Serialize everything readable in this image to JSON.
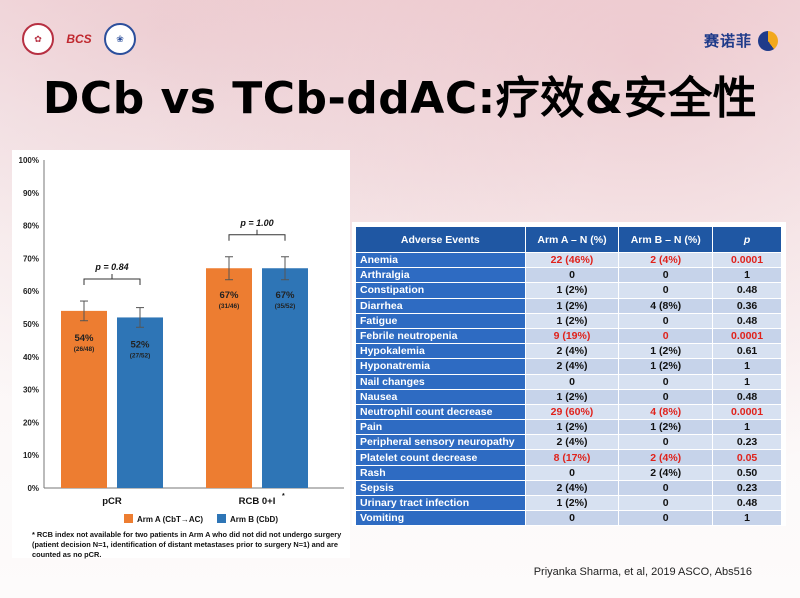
{
  "header": {
    "logo_left_1": "icon",
    "logo_bcs": "BCS",
    "logo_left_3": "icon",
    "brand_name": "赛诺菲"
  },
  "title": "DCb vs TCb-ddAC:疗效&安全性",
  "chart_data": {
    "type": "bar",
    "categories": [
      "pCR",
      "RCB 0+I*"
    ],
    "series": [
      {
        "name": "Arm A (CbT→AC)",
        "color": "#ed7d31",
        "values": [
          54,
          67
        ],
        "labels": [
          "54%",
          "67%"
        ],
        "sublabels": [
          "(26/48)",
          "(31/46)"
        ],
        "err": [
          3,
          3.5
        ]
      },
      {
        "name": "Arm B (CbD)",
        "color": "#2e75b6",
        "values": [
          52,
          67
        ],
        "labels": [
          "52%",
          "67%"
        ],
        "sublabels": [
          "(27/52)",
          "(35/52)"
        ],
        "err": [
          3,
          3.5
        ]
      }
    ],
    "ylim": [
      0,
      100
    ],
    "yticks": [
      "0%",
      "10%",
      "20%",
      "30%",
      "40%",
      "50%",
      "60%",
      "70%",
      "80%",
      "90%",
      "100%"
    ],
    "xlabels": [
      "pCR",
      "RCB 0+I"
    ],
    "xlabel_sup": "*",
    "pvalues": [
      "p = 0.84",
      "p = 1.00"
    ],
    "legend_placement": "bottom",
    "footnote": "* RCB index not available for two patients in Arm A who did not did not undergo surgery (patient decision N=1, identification of distant metastases prior to surgery N=1) and are counted as no pCR."
  },
  "table": {
    "headers": [
      "Adverse Events",
      "Arm A – N (%)",
      "Arm B – N (%)",
      "p"
    ],
    "rows": [
      {
        "name": "Anemia",
        "a": "22 (46%)",
        "b": "2 (4%)",
        "p": "0.0001",
        "red": true
      },
      {
        "name": "Arthralgia",
        "a": "0",
        "b": "0",
        "p": "1",
        "red": false
      },
      {
        "name": "Constipation",
        "a": "1 (2%)",
        "b": "0",
        "p": "0.48",
        "red": false
      },
      {
        "name": "Diarrhea",
        "a": "1 (2%)",
        "b": "4 (8%)",
        "p": "0.36",
        "red": false
      },
      {
        "name": "Fatigue",
        "a": "1 (2%)",
        "b": "0",
        "p": "0.48",
        "red": false
      },
      {
        "name": "Febrile neutropenia",
        "a": "9 (19%)",
        "b": "0",
        "p": "0.0001",
        "red": true
      },
      {
        "name": "Hypokalemia",
        "a": "2 (4%)",
        "b": "1 (2%)",
        "p": "0.61",
        "red": false
      },
      {
        "name": "Hyponatremia",
        "a": "2 (4%)",
        "b": "1 (2%)",
        "p": "1",
        "red": false
      },
      {
        "name": "Nail changes",
        "a": "0",
        "b": "0",
        "p": "1",
        "red": false
      },
      {
        "name": "Nausea",
        "a": "1 (2%)",
        "b": "0",
        "p": "0.48",
        "red": false
      },
      {
        "name": "Neutrophil count decrease",
        "a": "29 (60%)",
        "b": "4 (8%)",
        "p": "0.0001",
        "red": true
      },
      {
        "name": "Pain",
        "a": "1 (2%)",
        "b": "1 (2%)",
        "p": "1",
        "red": false
      },
      {
        "name": "Peripheral sensory neuropathy",
        "a": "2 (4%)",
        "b": "0",
        "p": "0.23",
        "red": false
      },
      {
        "name": "Platelet count decrease",
        "a": "8 (17%)",
        "b": "2 (4%)",
        "p": "0.05",
        "red": true
      },
      {
        "name": "Rash",
        "a": "0",
        "b": "2 (4%)",
        "p": "0.50",
        "red": false
      },
      {
        "name": "Sepsis",
        "a": "2 (4%)",
        "b": "0",
        "p": "0.23",
        "red": false
      },
      {
        "name": "Urinary tract infection",
        "a": "1 (2%)",
        "b": "0",
        "p": "0.48",
        "red": false
      },
      {
        "name": "Vomiting",
        "a": "0",
        "b": "0",
        "p": "1",
        "red": false
      }
    ]
  },
  "citation": "Priyanka Sharma, et al, 2019 ASCO, Abs516"
}
